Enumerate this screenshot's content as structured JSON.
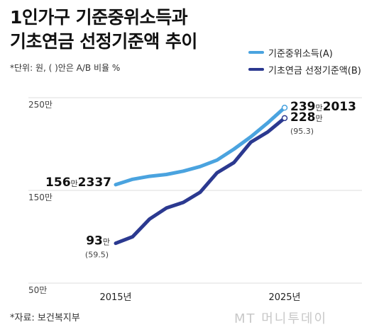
{
  "title_line1": "1인가구 기준중위소득과",
  "title_line2": "기초연금 선정기준액 추이",
  "unit_note": "*단위: 원, ( )안은 A/B 비율 %",
  "source": "*자료: 보건복지부",
  "watermark": "MT 머니투데이",
  "colors": {
    "series_a": "#4aa3df",
    "series_b": "#2b3990"
  },
  "chart_data": {
    "type": "line",
    "x": [
      2015,
      2016,
      2017,
      2018,
      2019,
      2020,
      2021,
      2022,
      2023,
      2024,
      2025
    ],
    "x_tick_labels": [
      "2015년",
      "2025년"
    ],
    "ylim": [
      50,
      250
    ],
    "y_ticks": [
      {
        "value": 250,
        "label": "250만"
      },
      {
        "value": 150,
        "label": "150만"
      },
      {
        "value": 50,
        "label": "50만"
      }
    ],
    "series": [
      {
        "name": "기준중위소득(A)",
        "values": [
          156.2,
          162,
          165.2,
          167.2,
          170.8,
          175.7,
          182.7,
          194.5,
          207.8,
          222.8,
          239.2
        ]
      },
      {
        "name": "기초연금 선정기준액(B)",
        "values": [
          93,
          100,
          119,
          131,
          137,
          148,
          169,
          180,
          202,
          213,
          228
        ]
      }
    ],
    "annotations": {
      "a_start": {
        "big": "156",
        "unit": "만",
        "rest": "2337"
      },
      "a_end": {
        "big": "239",
        "unit": "만",
        "rest": "2013"
      },
      "b_start": {
        "big": "93",
        "unit": "만",
        "ratio": "(59.5)"
      },
      "b_end": {
        "big": "228",
        "unit": "만",
        "ratio": "(95.3)"
      }
    }
  }
}
